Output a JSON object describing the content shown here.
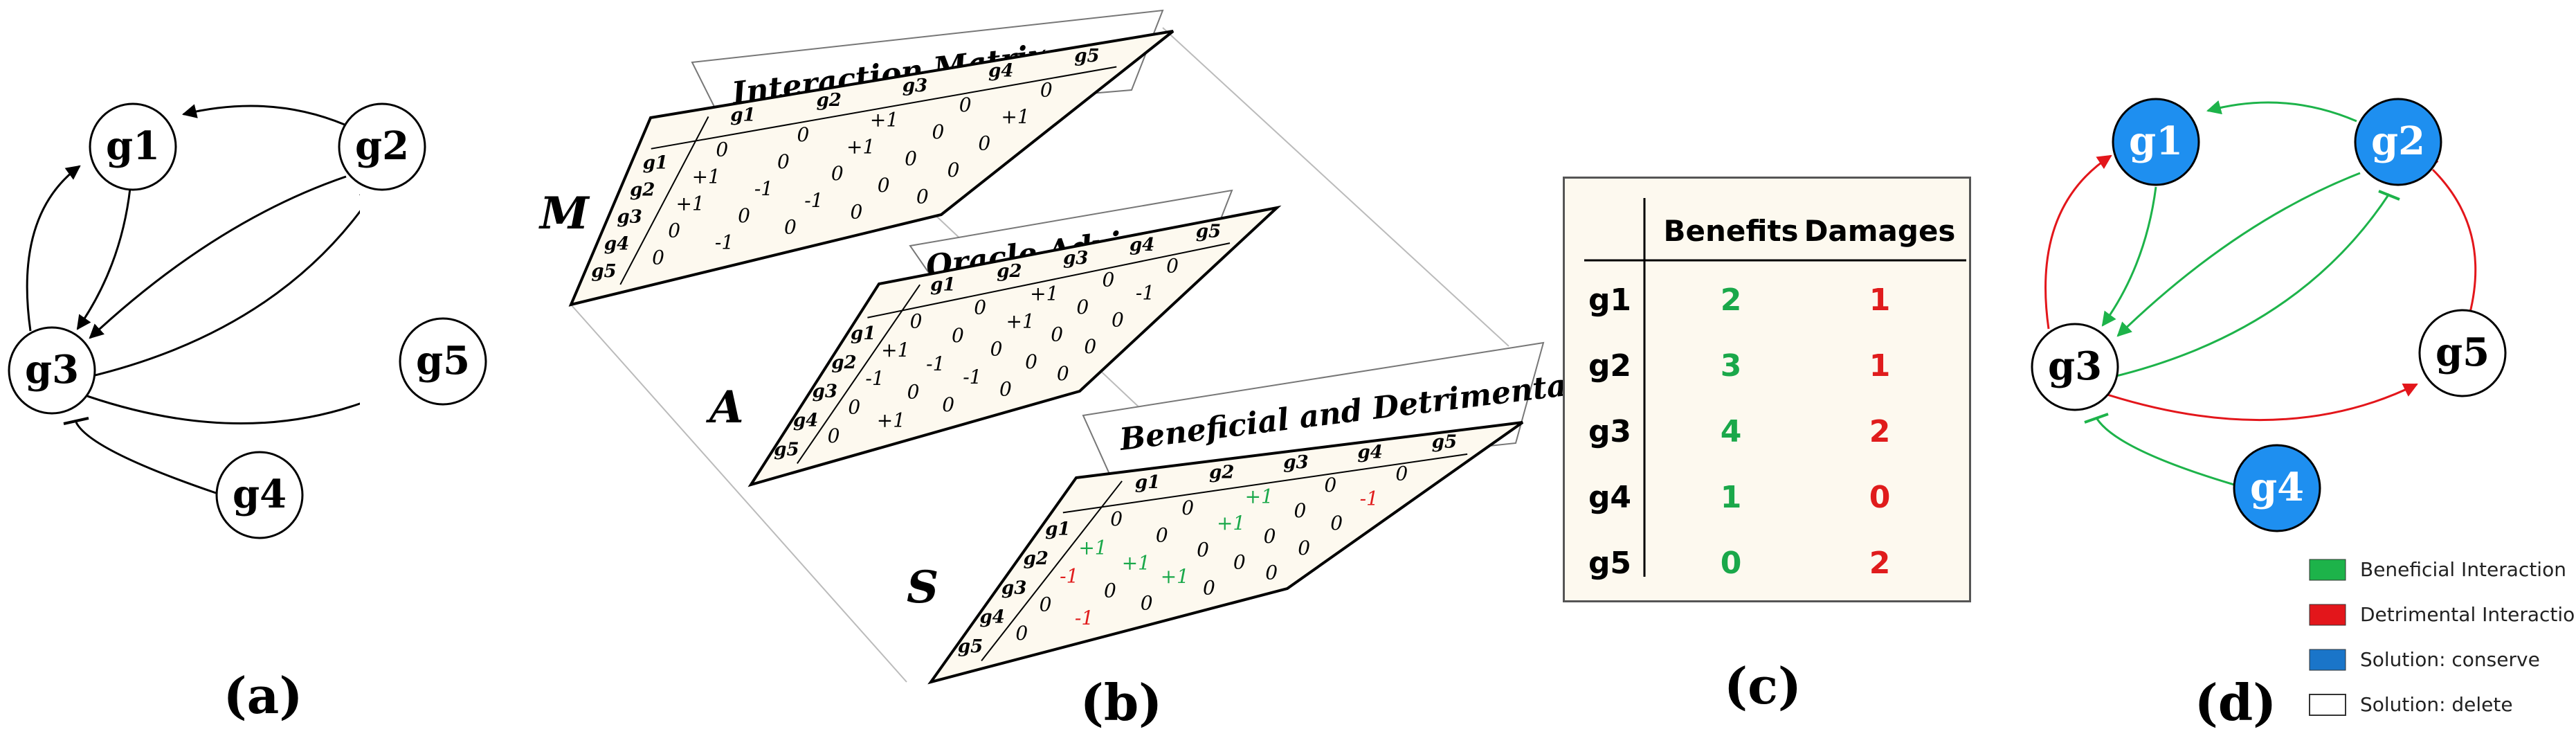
{
  "panel_a": {
    "caption": "(a)",
    "nodes": [
      "g1",
      "g2",
      "g3",
      "g4",
      "g5"
    ]
  },
  "panel_b": {
    "caption": "(b)",
    "planes": [
      {
        "letter": "M",
        "title": "Interaction Matrix"
      },
      {
        "letter": "A",
        "title": "Oracle Advice"
      },
      {
        "letter": "S",
        "title": "Beneficial and Detrimental Interactions"
      }
    ],
    "headers": [
      "g1",
      "g2",
      "g3",
      "g4",
      "g5"
    ],
    "matrix_M": [
      [
        "0",
        "0",
        "+1",
        "0",
        "0"
      ],
      [
        "+1",
        "0",
        "+1",
        "0",
        "+1"
      ],
      [
        "+1",
        "-1",
        "0",
        "0",
        "0"
      ],
      [
        "0",
        "0",
        "-1",
        "0",
        "0"
      ],
      [
        "0",
        "-1",
        "0",
        "0",
        "0"
      ]
    ],
    "matrix_A": [
      [
        "0",
        "0",
        "+1",
        "0",
        "0"
      ],
      [
        "+1",
        "0",
        "+1",
        "0",
        "-1"
      ],
      [
        "-1",
        "-1",
        "0",
        "0",
        "0"
      ],
      [
        "0",
        "0",
        "-1",
        "0",
        "0"
      ],
      [
        "0",
        "+1",
        "0",
        "0",
        "0"
      ]
    ],
    "matrix_S": [
      [
        "0",
        "0",
        "+1",
        "0",
        "0"
      ],
      [
        "+1",
        "0",
        "+1",
        "0",
        "-1"
      ],
      [
        "-1",
        "+1",
        "0",
        "0",
        "0"
      ],
      [
        "0",
        "0",
        "+1",
        "0",
        "0"
      ],
      [
        "0",
        "-1",
        "0",
        "0",
        "0"
      ]
    ]
  },
  "panel_c": {
    "caption": "(c)",
    "col_benefits": "Benefits",
    "col_damages": "Damages",
    "rows": [
      {
        "gene": "g1",
        "benefits": "2",
        "damages": "1"
      },
      {
        "gene": "g2",
        "benefits": "3",
        "damages": "1"
      },
      {
        "gene": "g3",
        "benefits": "4",
        "damages": "2"
      },
      {
        "gene": "g4",
        "benefits": "1",
        "damages": "0"
      },
      {
        "gene": "g5",
        "benefits": "0",
        "damages": "2"
      }
    ]
  },
  "panel_d": {
    "caption": "(d)",
    "legend": [
      {
        "label": "Beneficial Interaction",
        "color": "#1db34a"
      },
      {
        "label": "Detrimental Interaction",
        "color": "#e3161b"
      },
      {
        "label": "Solution: conserve",
        "color": "#1a75c9"
      },
      {
        "label": "Solution: delete",
        "color": "#ffffff"
      }
    ]
  },
  "colors": {
    "benefit": "#1aa84a",
    "damage": "#e01c1c",
    "conserve": "#1e8ff0",
    "edge": "#000000"
  }
}
